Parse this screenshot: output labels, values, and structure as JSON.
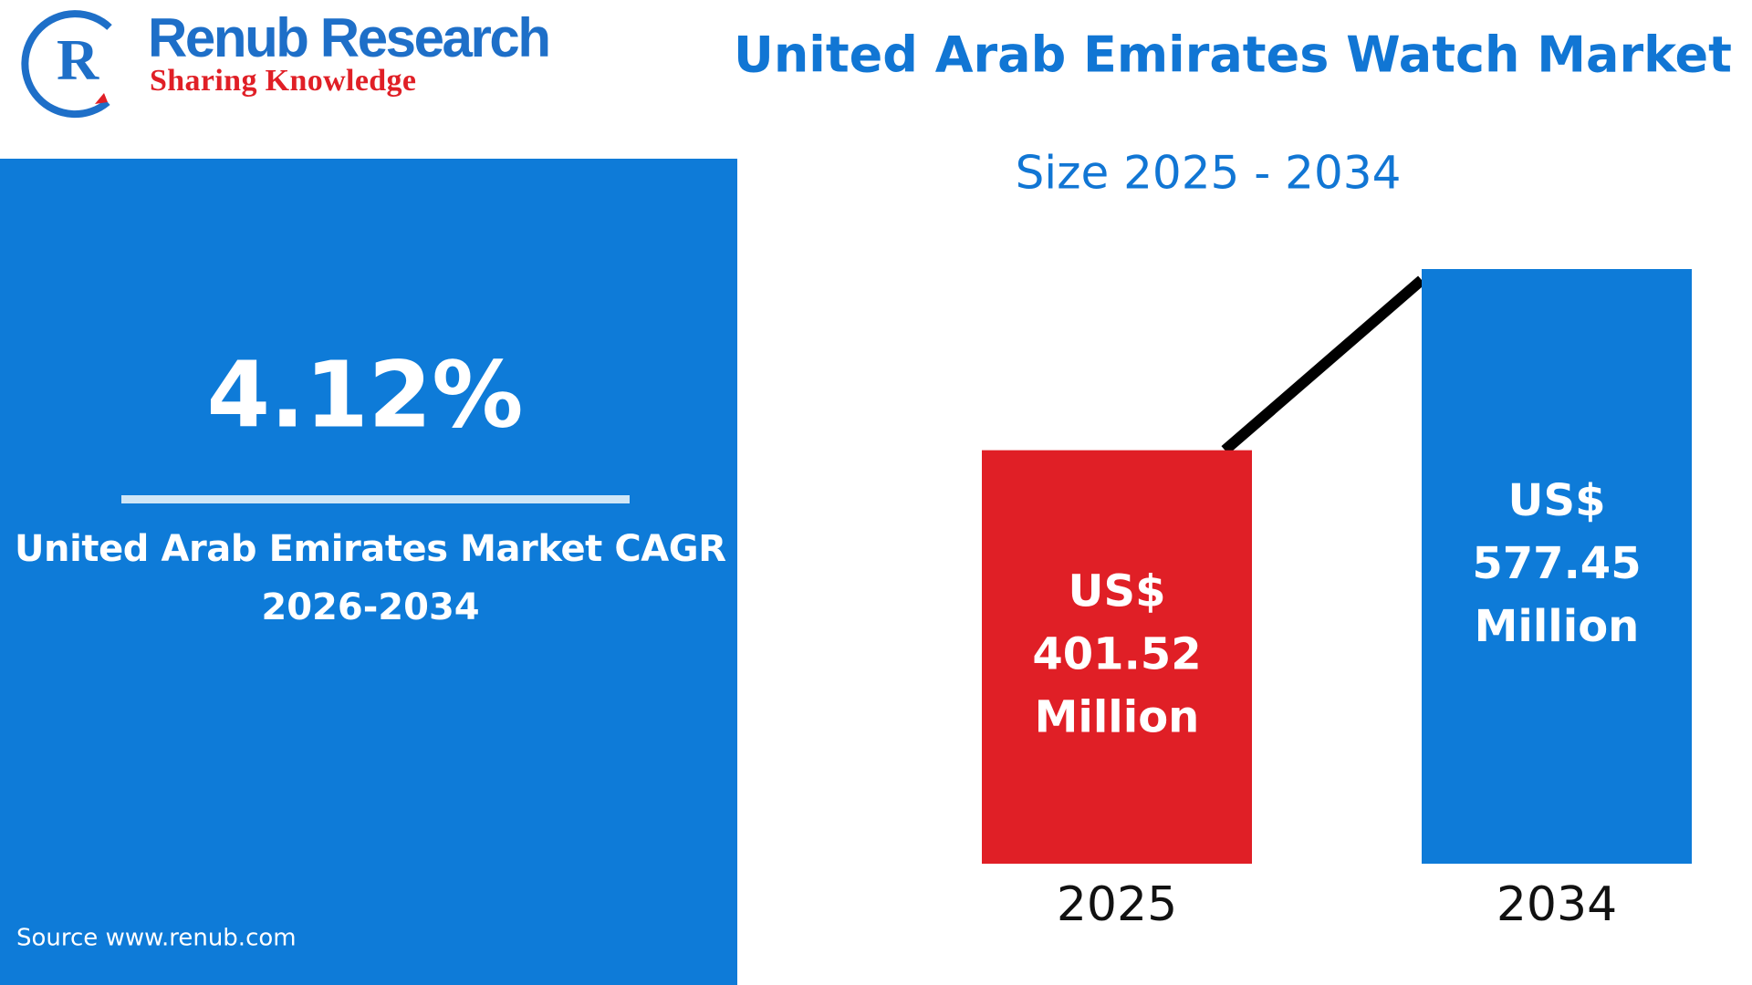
{
  "header": {
    "brand": "Renub Research",
    "tagline": "Sharing Knowledge"
  },
  "kpi": {
    "value": "4.12%",
    "label_line1": "United Arab Emirates Market CAGR",
    "label_line2": "2026-2034",
    "source": "Source  www.renub.com"
  },
  "chart_data": {
    "type": "bar",
    "title": "United Arab Emirates Watch Market",
    "subtitle": "Size 2025 - 2034",
    "categories": [
      "2025",
      "2034"
    ],
    "values": [
      401.52,
      577.45
    ],
    "value_labels": [
      "US$ 401.52 Million",
      "US$ 577.45 Million"
    ],
    "colors": [
      "#e01f26",
      "#0e7bd8"
    ]
  }
}
